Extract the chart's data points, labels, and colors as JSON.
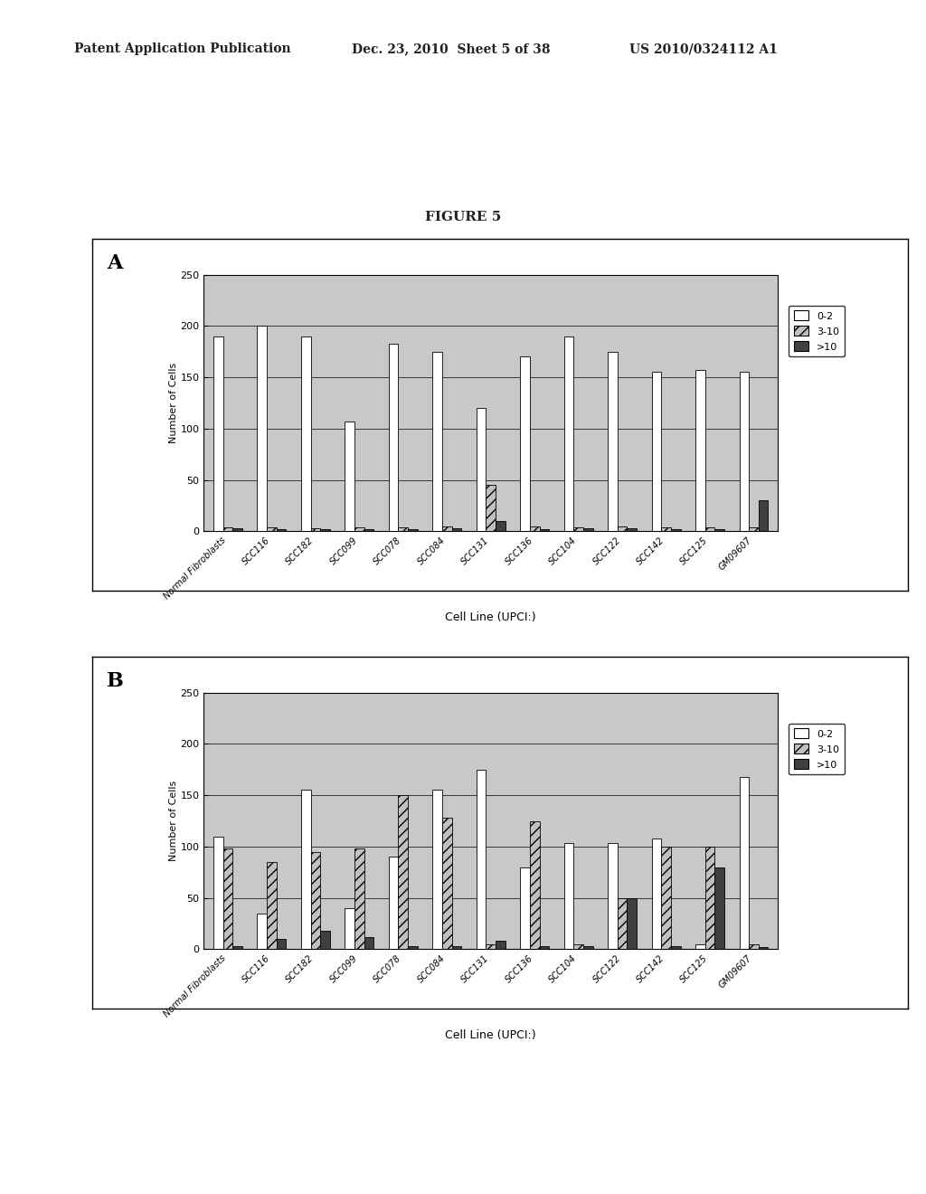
{
  "categories": [
    "Normal Fibroblasts",
    "SCC116",
    "SCC182",
    "SCC099",
    "SCC078",
    "SCC084",
    "SCC131",
    "SCC136",
    "SCC104",
    "SCC122",
    "SCC142",
    "SCC125",
    "GM09607"
  ],
  "chart_A": {
    "series_0_2": [
      190,
      200,
      190,
      107,
      183,
      175,
      120,
      170,
      190,
      175,
      155,
      157,
      155
    ],
    "series_3_10": [
      4,
      4,
      3,
      4,
      4,
      5,
      45,
      5,
      4,
      5,
      4,
      4,
      4
    ],
    "series_gt10": [
      3,
      2,
      2,
      2,
      2,
      3,
      10,
      2,
      3,
      3,
      2,
      2,
      30
    ]
  },
  "chart_B": {
    "series_0_2": [
      110,
      35,
      155,
      40,
      90,
      155,
      175,
      80,
      103,
      103,
      108,
      5,
      168
    ],
    "series_3_10": [
      98,
      85,
      95,
      98,
      150,
      128,
      5,
      125,
      5,
      50,
      100,
      100,
      5
    ],
    "series_gt10": [
      3,
      10,
      18,
      12,
      3,
      3,
      8,
      3,
      3,
      50,
      3,
      80,
      2
    ]
  },
  "ylim": [
    0,
    250
  ],
  "yticks": [
    0,
    50,
    100,
    150,
    200,
    250
  ],
  "ylabel": "Number of Cells",
  "xlabel": "Cell Line (UPCI:)",
  "figure_title": "FIGURE 5",
  "legend_labels": [
    "0-2",
    "3-10",
    ">10"
  ],
  "color_0_2": "#ffffff",
  "color_3_10": "#c0c0c0",
  "color_gt10": "#404040",
  "hatch_3_10": "///",
  "bg_color": "#c8c8c8",
  "bar_width": 0.22,
  "label_A": "A",
  "label_B": "B",
  "header_left": "Patent Application Publication",
  "header_mid": "Dec. 23, 2010  Sheet 5 of 38",
  "header_right": "US 2010/0324112 A1"
}
